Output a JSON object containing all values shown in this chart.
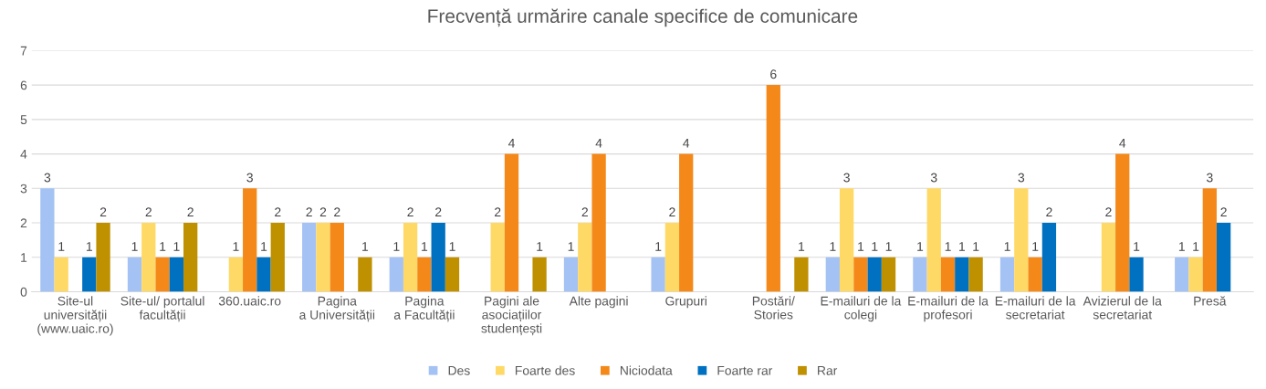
{
  "chart_data": {
    "type": "bar",
    "title": "Frecvență urmărire canale specifice de comunicare",
    "categories": [
      "Site-ul\nuniversității\n(www.uaic.ro)",
      "Site-ul/ portalul\nfacultății",
      "360.uaic.ro",
      "Pagina\na Universității",
      "Pagina\na Facultății",
      "Pagini ale\nasociațiilor\nstudențești",
      "Alte pagini",
      "Grupuri",
      "Postări/\nStories",
      "E-mailuri de la\ncolegi",
      "E-mailuri de la\nprofesori",
      "E-mailuri de la\nsecretariat",
      "Avizierul de la\nsecretariat",
      "Presă"
    ],
    "series": [
      {
        "name": "Des",
        "color": "#a4c2f4",
        "values": [
          3,
          1,
          null,
          2,
          1,
          null,
          1,
          1,
          null,
          1,
          1,
          1,
          null,
          1
        ]
      },
      {
        "name": "Foarte des",
        "color": "#ffd966",
        "values": [
          1,
          2,
          1,
          2,
          2,
          2,
          2,
          2,
          null,
          3,
          3,
          3,
          2,
          1
        ]
      },
      {
        "name": "Niciodata",
        "color": "#f4891a",
        "values": [
          null,
          1,
          3,
          2,
          1,
          4,
          4,
          4,
          6,
          1,
          1,
          1,
          4,
          3
        ]
      },
      {
        "name": "Foarte rar",
        "color": "#0070c0",
        "values": [
          1,
          1,
          1,
          null,
          2,
          null,
          null,
          null,
          null,
          1,
          1,
          2,
          1,
          2
        ]
      },
      {
        "name": "Rar",
        "color": "#bf9000",
        "values": [
          2,
          2,
          2,
          1,
          1,
          1,
          null,
          null,
          1,
          1,
          1,
          null,
          null,
          null
        ]
      }
    ],
    "ylim": [
      0,
      7
    ],
    "yticks": [
      0,
      1,
      2,
      3,
      4,
      5,
      6,
      7
    ],
    "grid": "y",
    "legend": "bottom",
    "data_labels": true
  }
}
